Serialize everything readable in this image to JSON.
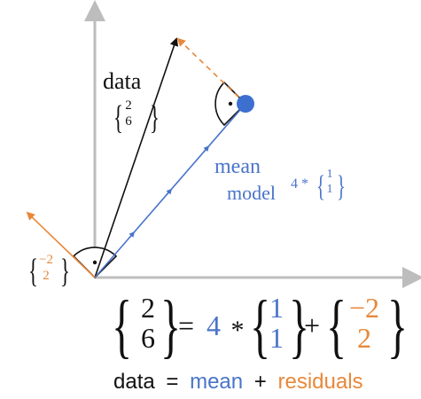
{
  "colors": {
    "black": "#111111",
    "blue": "#4a74c9",
    "orange": "#e8883a",
    "axis": "#bdbdbd"
  },
  "labels": {
    "data": "data",
    "mean": "mean",
    "model": "model",
    "model_scalar": "4 *"
  },
  "vectors": {
    "data": [
      "2",
      "6"
    ],
    "unit": [
      "1",
      "1"
    ],
    "residual": [
      "−2",
      "2"
    ]
  },
  "equation": {
    "data_vec": [
      "2",
      "6"
    ],
    "equals": "=",
    "scalar": "4",
    "times": "*",
    "unit_vec": [
      "1",
      "1"
    ],
    "plus": "+",
    "residual_vec": [
      "−2",
      "2"
    ]
  },
  "word_equation": {
    "data": "data",
    "equals": "=",
    "mean": "mean",
    "plus": "+",
    "residuals": "residuals"
  }
}
